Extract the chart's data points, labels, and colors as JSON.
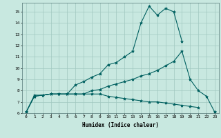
{
  "xlabel": "Humidex (Indice chaleur)",
  "bg_color": "#c8e8e0",
  "grid_color": "#a0c8c0",
  "line_color": "#006060",
  "xlim": [
    -0.5,
    23.5
  ],
  "ylim": [
    6,
    15.8
  ],
  "yticks": [
    6,
    7,
    8,
    9,
    10,
    11,
    12,
    13,
    14,
    15
  ],
  "xticks": [
    0,
    1,
    2,
    3,
    4,
    5,
    6,
    7,
    8,
    9,
    10,
    11,
    12,
    13,
    14,
    15,
    16,
    17,
    18,
    19,
    20,
    21,
    22,
    23
  ],
  "line1_x": [
    0,
    1,
    2,
    3,
    4,
    5,
    6,
    7,
    8,
    9,
    10,
    11,
    12,
    13,
    14,
    15,
    16,
    17,
    18,
    19,
    20,
    21,
    22
  ],
  "line1_y": [
    6.1,
    7.5,
    7.6,
    7.7,
    7.7,
    7.7,
    8.5,
    8.8,
    9.2,
    9.5,
    10.3,
    10.5,
    11.0,
    11.5,
    14.0,
    15.5,
    14.7,
    15.3,
    15.0,
    12.4,
    null,
    null,
    null
  ],
  "line2_x": [
    0,
    1,
    2,
    3,
    4,
    5,
    6,
    7,
    8,
    9,
    10,
    11,
    12,
    13,
    14,
    15,
    16,
    17,
    18,
    19,
    20,
    21,
    22,
    23
  ],
  "line2_y": [
    6.1,
    7.6,
    7.6,
    7.7,
    7.7,
    7.7,
    7.7,
    7.7,
    8.0,
    8.1,
    8.4,
    8.6,
    8.8,
    9.0,
    9.3,
    9.5,
    9.8,
    10.2,
    10.6,
    11.5,
    9.0,
    8.0,
    7.5,
    6.1
  ],
  "line3_x": [
    0,
    1,
    2,
    3,
    4,
    5,
    6,
    7,
    8,
    9,
    10,
    11,
    12,
    13,
    14,
    15,
    16,
    17,
    18,
    19,
    20,
    21,
    22,
    23
  ],
  "line3_y": [
    6.1,
    7.5,
    7.6,
    7.7,
    7.7,
    7.7,
    7.7,
    7.7,
    7.7,
    7.7,
    7.5,
    7.4,
    7.3,
    7.2,
    7.1,
    7.0,
    7.0,
    6.9,
    6.8,
    6.7,
    6.6,
    6.5,
    null,
    6.1
  ]
}
